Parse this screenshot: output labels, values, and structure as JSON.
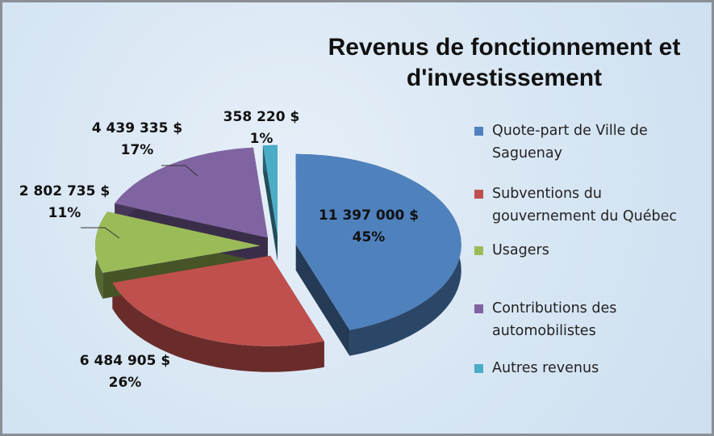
{
  "chart_data": {
    "type": "pie",
    "title": "Revenus de fonctionnement et d'investissement",
    "categories": [
      "Quote-part de Ville de Saguenay",
      "Subventions du gouvernement du Québec",
      "Usagers",
      "Contributions des automobilistes",
      "Autres revenus"
    ],
    "values": [
      11397000,
      6484905,
      2802735,
      4439335,
      358220
    ],
    "value_labels": [
      "11 397 000  $",
      "6 484 905  $",
      "2 802 735  $",
      "4 439 335  $",
      "358 220  $"
    ],
    "percent_labels": [
      "45%",
      "26%",
      "11%",
      "17%",
      "1%"
    ],
    "colors": [
      "#4f81bd",
      "#c0504d",
      "#9bbb59",
      "#8064a2",
      "#4bacc6"
    ],
    "legend": "right"
  }
}
